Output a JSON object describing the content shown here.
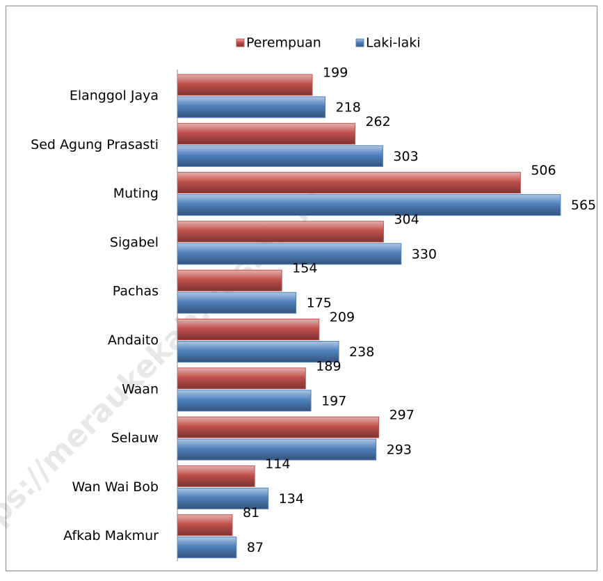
{
  "chart_data": {
    "type": "bar",
    "orientation": "horizontal",
    "watermark": "https://meraukekab.bps.go.id",
    "categories": [
      "Elanggol Jaya",
      "Sed Agung Prasasti",
      "Muting",
      "Sigabel",
      "Pachas",
      "Andaito",
      "Waan",
      "Selauw",
      "Wan Wai Bob",
      "Afkab Makmur"
    ],
    "series": [
      {
        "name": "Perempuan",
        "color": "#c0504d",
        "values": [
          199,
          262,
          506,
          304,
          154,
          209,
          189,
          297,
          114,
          81
        ]
      },
      {
        "name": "Laki-laki",
        "color": "#4f81bd",
        "values": [
          218,
          303,
          565,
          330,
          175,
          238,
          197,
          293,
          134,
          87
        ]
      }
    ],
    "xlim": [
      0,
      600
    ],
    "legend": "top"
  }
}
